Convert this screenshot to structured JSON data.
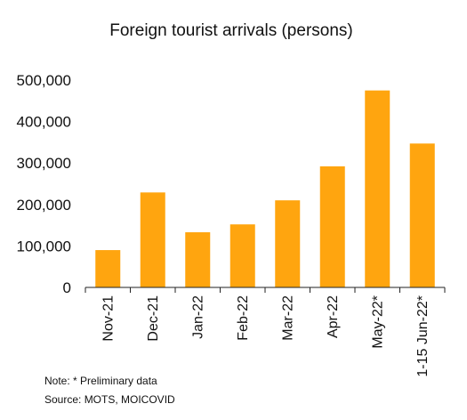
{
  "chart_data": {
    "type": "bar",
    "title": "Foreign tourist arrivals (persons)",
    "categories": [
      "Nov-21",
      "Dec-21",
      "Jan-22",
      "Feb-22",
      "Mar-22",
      "Apr-22",
      "May-22*",
      "1-15 Jun-22*"
    ],
    "values": [
      90000,
      229000,
      133000,
      152000,
      210000,
      292000,
      475000,
      347000
    ],
    "yticks": [
      "0",
      "100,000",
      "200,000",
      "300,000",
      "400,000",
      "500,000"
    ],
    "ylim": [
      0,
      500000
    ],
    "grid": false,
    "legend": "none",
    "bar_color": "#FFA50F",
    "axis_color": "#222222"
  },
  "notes": {
    "note": "Note: * Preliminary data",
    "source": "Source: MOTS, MOICOVID"
  }
}
